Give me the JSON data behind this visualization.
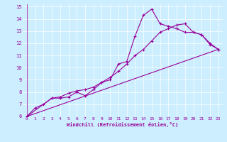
{
  "xlabel": "Windchill (Refroidissement éolien,°C)",
  "bg_color": "#cceeff",
  "line_color": "#990099",
  "xlim": [
    -0.5,
    23.5
  ],
  "ylim": [
    6,
    15.2
  ],
  "xticks": [
    0,
    1,
    2,
    3,
    4,
    5,
    6,
    7,
    8,
    9,
    10,
    11,
    12,
    13,
    14,
    15,
    16,
    17,
    18,
    19,
    20,
    21,
    22,
    23
  ],
  "yticks": [
    6,
    7,
    8,
    9,
    10,
    11,
    12,
    13,
    14,
    15
  ],
  "line1_x": [
    0,
    1,
    2,
    3,
    4,
    5,
    6,
    7,
    8,
    9,
    10,
    11,
    12,
    13,
    14,
    15,
    16,
    17,
    18,
    19,
    20,
    21,
    22,
    23
  ],
  "line1_y": [
    6.0,
    6.7,
    7.0,
    7.5,
    7.5,
    7.6,
    8.0,
    7.7,
    8.2,
    8.8,
    9.0,
    10.3,
    10.5,
    12.6,
    14.3,
    14.8,
    13.6,
    13.4,
    13.2,
    12.9,
    12.9,
    12.7,
    12.0,
    11.5
  ],
  "line2_x": [
    0,
    3,
    4,
    5,
    6,
    7,
    8,
    9,
    10,
    11,
    12,
    13,
    14,
    15,
    16,
    17,
    18,
    19,
    20,
    21,
    22,
    23
  ],
  "line2_y": [
    6.0,
    7.5,
    7.6,
    7.9,
    8.1,
    8.2,
    8.4,
    8.8,
    9.2,
    9.7,
    10.3,
    11.0,
    11.5,
    12.2,
    12.9,
    13.2,
    13.5,
    13.6,
    12.9,
    12.7,
    11.9,
    11.5
  ],
  "line3_x": [
    0,
    23
  ],
  "line3_y": [
    6.0,
    11.5
  ]
}
